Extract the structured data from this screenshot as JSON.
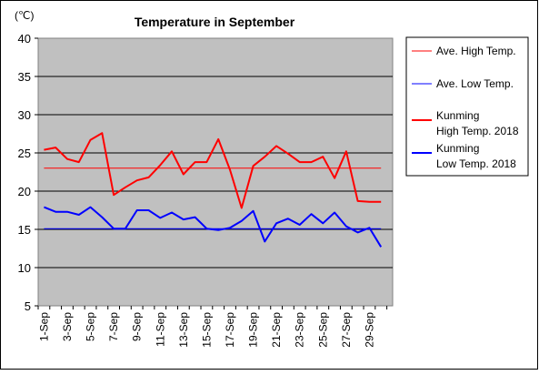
{
  "chart_data": {
    "type": "line",
    "title": "Temperature in September",
    "unit_label": "(℃)",
    "ylim": [
      5,
      40
    ],
    "yticks": [
      5,
      10,
      15,
      20,
      25,
      30,
      35,
      40
    ],
    "grid": true,
    "legend_position": "right",
    "x_tick_labels": [
      "1-Sep",
      "3-Sep",
      "5-Sep",
      "7-Sep",
      "9-Sep",
      "11-Sep",
      "13-Sep",
      "15-Sep",
      "17-Sep",
      "19-Sep",
      "21-Sep",
      "23-Sep",
      "25-Sep",
      "27-Sep",
      "29-Sep"
    ],
    "x": [
      1,
      2,
      3,
      4,
      5,
      6,
      7,
      8,
      9,
      10,
      11,
      12,
      13,
      14,
      15,
      16,
      17,
      18,
      19,
      20,
      21,
      22,
      23,
      24,
      25,
      26,
      27,
      28,
      29,
      30
    ],
    "series": [
      {
        "name": "Ave. High Temp.",
        "color": "#ff0000",
        "width": 1,
        "values": [
          23,
          23,
          23,
          23,
          23,
          23,
          23,
          23,
          23,
          23,
          23,
          23,
          23,
          23,
          23,
          23,
          23,
          23,
          23,
          23,
          23,
          23,
          23,
          23,
          23,
          23,
          23,
          23,
          23,
          23
        ]
      },
      {
        "name": "Ave. Low Temp.",
        "color": "#0000ff",
        "width": 1,
        "values": [
          15.1,
          15.1,
          15.1,
          15.1,
          15.1,
          15.1,
          15.1,
          15.1,
          15.1,
          15.1,
          15.1,
          15.1,
          15.1,
          15.1,
          15.1,
          15.1,
          15.1,
          15.1,
          15.1,
          15.1,
          15.1,
          15.1,
          15.1,
          15.1,
          15.1,
          15.1,
          15.1,
          15.1,
          15.1,
          15.1
        ]
      },
      {
        "name": "Kunming High Temp. 2018",
        "legend_lines": [
          "Kunming",
          "High Temp. 2018"
        ],
        "color": "#ff0000",
        "width": 2,
        "values": [
          25.4,
          25.7,
          24.2,
          23.8,
          26.7,
          27.6,
          19.5,
          20.5,
          21.4,
          21.8,
          23.4,
          25.2,
          22.2,
          23.8,
          23.8,
          26.8,
          22.8,
          17.8,
          23.3,
          24.5,
          25.9,
          24.9,
          23.8,
          23.8,
          24.5,
          21.7,
          25.2,
          18.7,
          18.6,
          18.6
        ]
      },
      {
        "name": "Kunming Low Temp. 2018",
        "legend_lines": [
          "Kunming",
          "Low Temp. 2018"
        ],
        "color": "#0000ff",
        "width": 2,
        "values": [
          17.9,
          17.3,
          17.3,
          16.9,
          17.9,
          16.6,
          15.1,
          15.1,
          17.5,
          17.5,
          16.5,
          17.2,
          16.3,
          16.6,
          15.1,
          14.9,
          15.2,
          16.1,
          17.4,
          13.4,
          15.8,
          16.4,
          15.6,
          17.0,
          15.8,
          17.2,
          15.4,
          14.6,
          15.2,
          12.7
        ]
      }
    ]
  }
}
